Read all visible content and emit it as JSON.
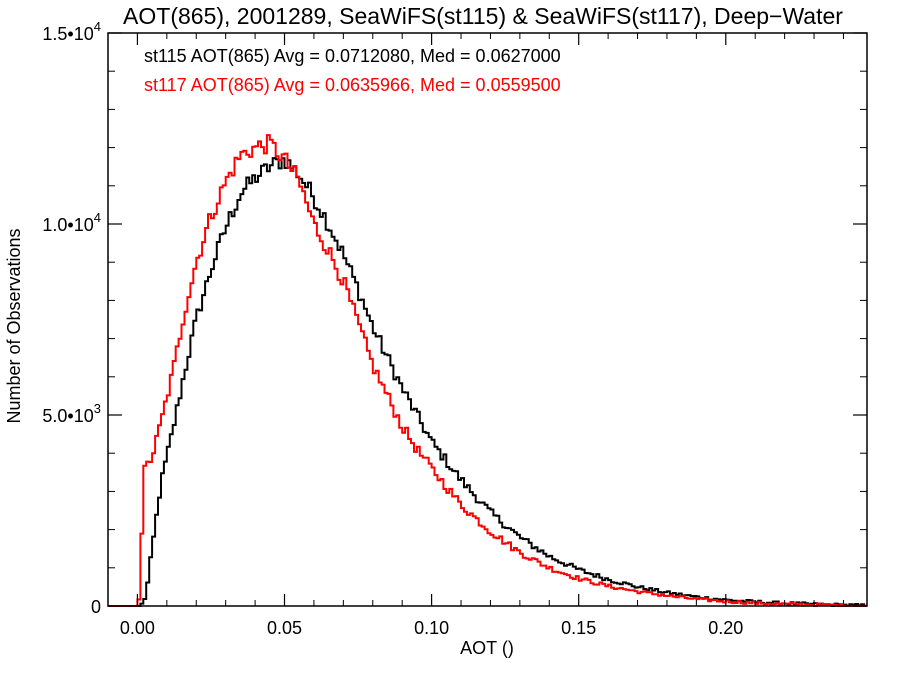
{
  "chart_data": {
    "type": "line",
    "subtype": "step-histogram",
    "title": "AOT(865), 2001289, SeaWiFS(st115) & SeaWiFS(st117), Deep−Water",
    "xlabel": "AOT ()",
    "ylabel": "Number of Observations",
    "xlim": [
      -0.01,
      0.248
    ],
    "ylim": [
      0,
      15000
    ],
    "x_ticks": [
      {
        "value": 0.0,
        "label": "0.00"
      },
      {
        "value": 0.05,
        "label": "0.05"
      },
      {
        "value": 0.1,
        "label": "0.10"
      },
      {
        "value": 0.15,
        "label": "0.15"
      },
      {
        "value": 0.2,
        "label": "0.20"
      }
    ],
    "y_ticks": [
      {
        "value": 0,
        "mant": "0",
        "exp": ""
      },
      {
        "value": 5000,
        "mant": "5.0•10",
        "exp": "3"
      },
      {
        "value": 10000,
        "mant": "1.0•10",
        "exp": "4"
      },
      {
        "value": 15000,
        "mant": "1.5•10",
        "exp": "4"
      }
    ],
    "grid": false,
    "annotations": [
      {
        "text": "st115 AOT(865) Avg = 0.0712080, Med = 0.0627000",
        "color": "#000000"
      },
      {
        "text": "st117 AOT(865) Avg = 0.0635966, Med = 0.0559500",
        "color": "#ff0000"
      }
    ],
    "series": [
      {
        "color": "#000000",
        "x": [
          -0.01,
          0.0,
          0.001,
          0.002,
          0.003,
          0.005,
          0.008,
          0.012,
          0.016,
          0.02,
          0.025,
          0.03,
          0.035,
          0.04,
          0.045,
          0.05,
          0.055,
          0.06,
          0.065,
          0.07,
          0.075,
          0.08,
          0.085,
          0.09,
          0.095,
          0.1,
          0.11,
          0.12,
          0.13,
          0.14,
          0.15,
          0.16,
          0.17,
          0.18,
          0.19,
          0.2,
          0.21,
          0.22,
          0.23,
          0.24,
          0.248
        ],
        "y": [
          0,
          0,
          0,
          100,
          300,
          1500,
          3200,
          4600,
          6100,
          7500,
          8800,
          9900,
          10800,
          11200,
          11500,
          11700,
          11300,
          10700,
          10000,
          9200,
          8300,
          7300,
          6500,
          5700,
          5000,
          4300,
          3300,
          2450,
          1800,
          1300,
          950,
          700,
          500,
          350,
          240,
          160,
          110,
          70,
          45,
          25,
          10
        ]
      },
      {
        "color": "#ff0000",
        "x": [
          -0.01,
          0.0,
          0.001,
          0.002,
          0.005,
          0.008,
          0.012,
          0.016,
          0.02,
          0.025,
          0.03,
          0.035,
          0.04,
          0.045,
          0.05,
          0.055,
          0.06,
          0.065,
          0.07,
          0.075,
          0.08,
          0.085,
          0.09,
          0.095,
          0.1,
          0.11,
          0.12,
          0.13,
          0.14,
          0.15,
          0.16,
          0.17,
          0.18,
          0.19,
          0.2,
          0.21,
          0.22,
          0.23,
          0.24,
          0.248
        ],
        "y": [
          0,
          0,
          400,
          3500,
          3900,
          4800,
          6100,
          7700,
          9000,
          10200,
          11100,
          11800,
          12000,
          12100,
          11700,
          11100,
          10000,
          9300,
          8500,
          7400,
          6300,
          5500,
          4700,
          4100,
          3600,
          2650,
          1950,
          1400,
          1000,
          720,
          520,
          380,
          270,
          180,
          120,
          80,
          50,
          30,
          15,
          5
        ]
      }
    ]
  }
}
